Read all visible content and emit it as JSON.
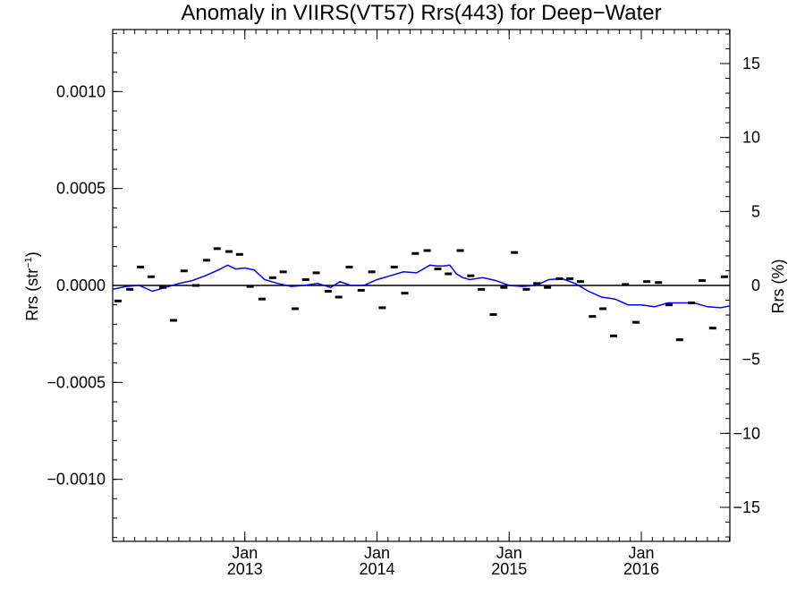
{
  "chart_data": {
    "type": "line",
    "title": "Anomaly in VIIRS(VT57) Rrs(443) for Deep−Water",
    "ylabel": "Rrs (str",
    "ylabel_sup": "−1",
    "ylabel_close": ")",
    "y2label": "Rrs (%)",
    "xlim": [
      2012.0,
      2016.67
    ],
    "ylim": [
      -0.00132,
      0.00132
    ],
    "y2lim": [
      -17.3,
      17.3
    ],
    "grid": false,
    "left_ticks": [
      {
        "value": 0.001,
        "label": "0.0010"
      },
      {
        "value": 0.0005,
        "label": "0.0005"
      },
      {
        "value": 0.0,
        "label": "0.0000"
      },
      {
        "value": -0.0005,
        "label": "−0.0005"
      },
      {
        "value": -0.001,
        "label": "−0.0010"
      }
    ],
    "right_ticks": [
      {
        "value": 15,
        "label": "15"
      },
      {
        "value": 10,
        "label": "10"
      },
      {
        "value": 5,
        "label": "5"
      },
      {
        "value": 0,
        "label": "0"
      },
      {
        "value": -5,
        "label": "−5"
      },
      {
        "value": -10,
        "label": "−10"
      },
      {
        "value": -15,
        "label": "−15"
      }
    ],
    "x_ticks": [
      {
        "value": 2013.0,
        "month": "Jan",
        "year": "2013"
      },
      {
        "value": 2014.0,
        "month": "Jan",
        "year": "2014"
      },
      {
        "value": 2015.0,
        "month": "Jan",
        "year": "2015"
      },
      {
        "value": 2016.0,
        "month": "Jan",
        "year": "2016"
      }
    ],
    "reference_line": 0,
    "series": [
      {
        "mark": "dash",
        "color": "#000000",
        "x": [
          2012.04,
          2012.13,
          2012.21,
          2012.29,
          2012.38,
          2012.46,
          2012.54,
          2012.63,
          2012.71,
          2012.79,
          2012.88,
          2012.96,
          2013.04,
          2013.13,
          2013.21,
          2013.29,
          2013.38,
          2013.46,
          2013.54,
          2013.63,
          2013.71,
          2013.79,
          2013.88,
          2013.96,
          2014.04,
          2014.13,
          2014.21,
          2014.29,
          2014.38,
          2014.46,
          2014.54,
          2014.63,
          2014.71,
          2014.79,
          2014.88,
          2014.96,
          2015.04,
          2015.13,
          2015.21,
          2015.29,
          2015.38,
          2015.46,
          2015.54,
          2015.63,
          2015.71,
          2015.79,
          2015.88,
          2015.96,
          2016.04,
          2016.13,
          2016.21,
          2016.29,
          2016.38,
          2016.46,
          2016.54,
          2016.63
        ],
        "y": [
          -8e-05,
          -2e-05,
          9.5e-05,
          4.5e-05,
          -1e-05,
          -0.00018,
          7.5e-05,
          0.0,
          0.00013,
          0.00019,
          0.000175,
          0.00016,
          -5e-06,
          -7e-05,
          4e-05,
          7e-05,
          -0.00012,
          3e-05,
          6.5e-05,
          -3e-05,
          -6e-05,
          9.5e-05,
          -2.5e-05,
          7e-05,
          -0.000115,
          9.5e-05,
          -4e-05,
          0.000165,
          0.00018,
          8.5e-05,
          6e-05,
          0.00018,
          5e-05,
          -2e-05,
          -0.00015,
          -1e-05,
          0.00017,
          -2e-05,
          1e-05,
          -1e-05,
          3.5e-05,
          3.5e-05,
          2e-05,
          -0.00016,
          -0.00012,
          -0.00026,
          5e-06,
          -0.00019,
          2e-05,
          1.5e-05,
          -0.0001,
          -0.00028,
          -9e-05,
          2.5e-05,
          -0.00022,
          4.5e-05
        ]
      },
      {
        "mark": "line",
        "color": "#0000ff",
        "x": [
          2012.0,
          2012.1,
          2012.2,
          2012.3,
          2012.4,
          2012.5,
          2012.6,
          2012.7,
          2012.8,
          2012.87,
          2012.93,
          2013.0,
          2013.07,
          2013.15,
          2013.25,
          2013.35,
          2013.45,
          2013.55,
          2013.65,
          2013.72,
          2013.8,
          2013.9,
          2014.0,
          2014.1,
          2014.2,
          2014.3,
          2014.4,
          2014.45,
          2014.5,
          2014.55,
          2014.6,
          2014.65,
          2014.7,
          2014.8,
          2014.9,
          2015.0,
          2015.1,
          2015.2,
          2015.3,
          2015.4,
          2015.5,
          2015.6,
          2015.7,
          2015.8,
          2015.9,
          2016.0,
          2016.1,
          2016.2,
          2016.3,
          2016.4,
          2016.5,
          2016.6,
          2016.67
        ],
        "y": [
          -2e-05,
          -5e-06,
          0.0,
          -3e-05,
          -1e-05,
          1e-05,
          2.5e-05,
          5e-05,
          8e-05,
          0.000105,
          8.5e-05,
          9e-05,
          8e-05,
          3e-05,
          1e-05,
          -5e-06,
          0.0,
          1e-05,
          -1e-05,
          2e-05,
          0.0,
          0.0,
          3e-05,
          5e-05,
          7e-05,
          6.5e-05,
          0.000105,
          0.0001,
          0.0001,
          0.000105,
          6e-05,
          4e-05,
          3e-05,
          4e-05,
          2.5e-05,
          0.0,
          -5e-06,
          0.0,
          3e-05,
          3.5e-05,
          1e-05,
          -3e-05,
          -6e-05,
          -7e-05,
          -0.0001,
          -0.0001,
          -0.00011,
          -9e-05,
          -9e-05,
          -9e-05,
          -0.00011,
          -0.000115,
          -0.000105
        ]
      }
    ]
  }
}
